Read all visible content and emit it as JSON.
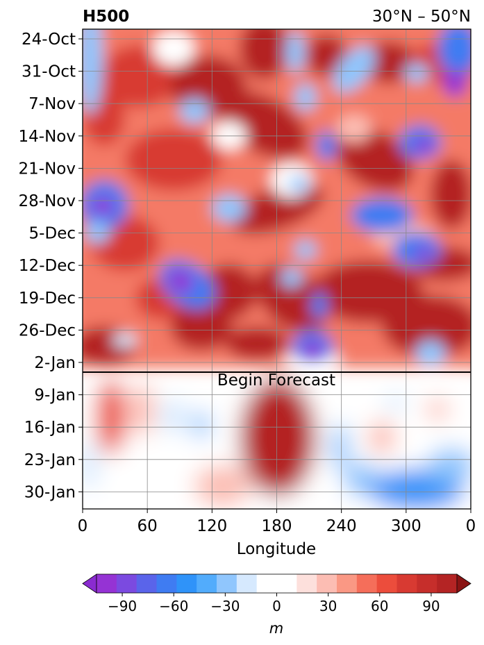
{
  "chart_data": {
    "type": "heatmap",
    "title": "H500",
    "subtitle": "30°N – 50°N",
    "xlabel": "Longitude",
    "ylabel": "",
    "x_ticks": [
      "0",
      "60",
      "120",
      "180",
      "240",
      "300",
      "0"
    ],
    "y_ticks": [
      "24-Oct",
      "31-Oct",
      "7-Nov",
      "14-Nov",
      "21-Nov",
      "28-Nov",
      "5-Dec",
      "12-Dec",
      "19-Dec",
      "26-Dec",
      "2-Jan",
      "9-Jan",
      "16-Jan",
      "23-Jan",
      "30-Jan"
    ],
    "forecast_label": "Begin Forecast",
    "forecast_start": "4-Jan",
    "grid": true,
    "colorbar": {
      "label": "m",
      "ticks": [
        "−90",
        "−60",
        "−30",
        "0",
        "30",
        "60",
        "90"
      ],
      "range": [
        -105,
        105
      ],
      "extend": "both"
    },
    "colors": {
      "levels": [
        "#9533d4",
        "#7b4ae0",
        "#5a64ea",
        "#3f7cf2",
        "#2f93f9",
        "#52acfc",
        "#90c6fd",
        "#d6e9fe",
        "#ffffff",
        "#ffffff",
        "#fde0dc",
        "#fcbdb3",
        "#fa9884",
        "#f56e5a",
        "#ec4d3c",
        "#d83a32",
        "#c62e2b",
        "#b42424"
      ],
      "under": "#8a2bd0",
      "over": "#8a1414",
      "grid": "#888888",
      "forecast_line": "#000000"
    }
  }
}
